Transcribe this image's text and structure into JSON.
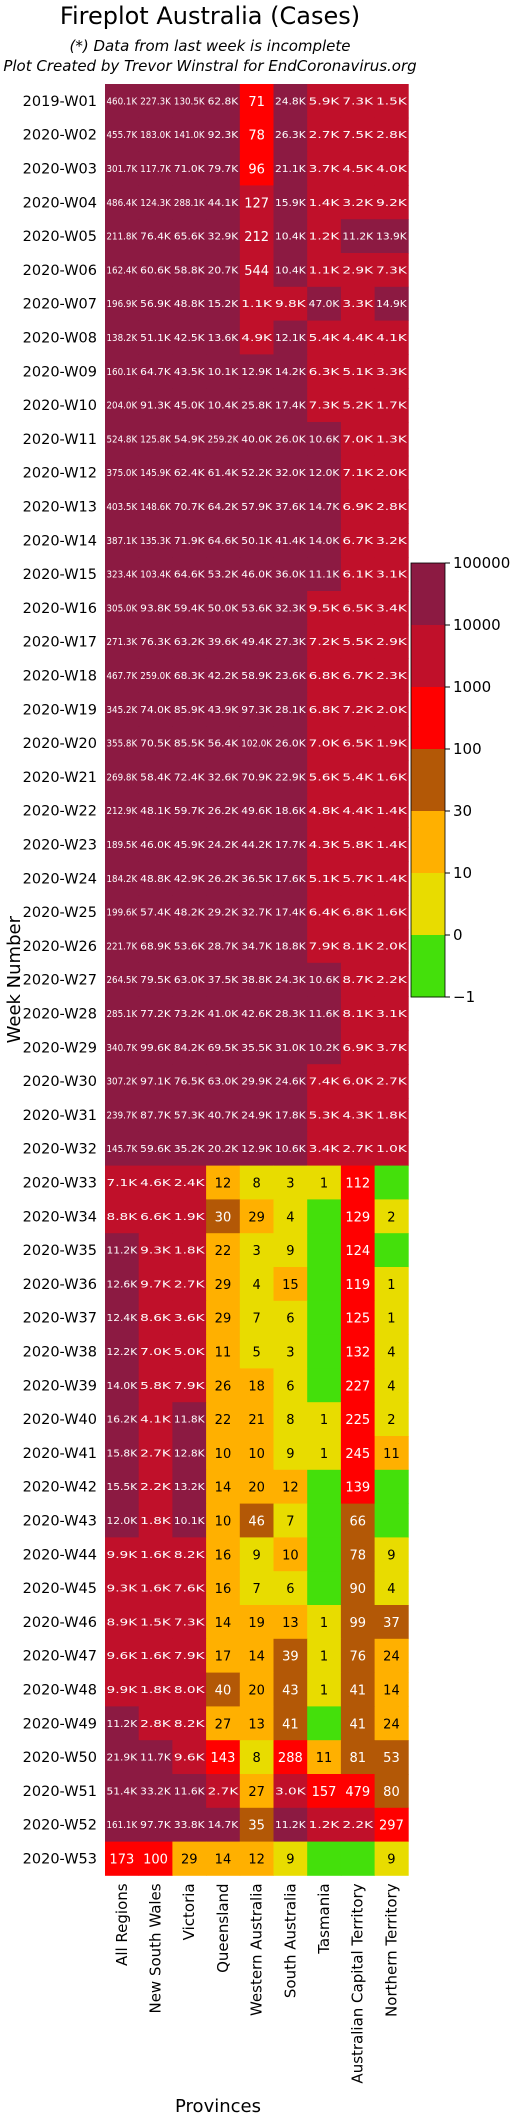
{
  "chart_data": {
    "type": "heatmap",
    "title": "Fireplot Australia (Cases)",
    "subtitle_lines": [
      "(*) Data from last week is incomplete",
      "Plot Created by Trevor Winstral for EndCoronavirus.org"
    ],
    "xlabel": "Provinces",
    "ylabel": "Week Number",
    "columns": [
      "All Regions",
      "New South Wales",
      "Victoria",
      "Queensland",
      "Western Australia",
      "South Australia",
      "Tasmania",
      "Australian Capital Territory",
      "Northern Territory"
    ],
    "rows": [
      "2019-W01",
      "2020-W02",
      "2020-W03",
      "2020-W04",
      "2020-W05",
      "2020-W06",
      "2020-W07",
      "2020-W08",
      "2020-W09",
      "2020-W10",
      "2020-W11",
      "2020-W12",
      "2020-W13",
      "2020-W14",
      "2020-W15",
      "2020-W16",
      "2020-W17",
      "2020-W18",
      "2020-W19",
      "2020-W20",
      "2020-W21",
      "2020-W22",
      "2020-W23",
      "2020-W24",
      "2020-W25",
      "2020-W26",
      "2020-W27",
      "2020-W28",
      "2020-W29",
      "2020-W30",
      "2020-W31",
      "2020-W32",
      "2020-W33",
      "2020-W34",
      "2020-W35",
      "2020-W36",
      "2020-W37",
      "2020-W38",
      "2020-W39",
      "2020-W40",
      "2020-W41",
      "2020-W42",
      "2020-W43",
      "2020-W44",
      "2020-W45",
      "2020-W46",
      "2020-W47",
      "2020-W48",
      "2020-W49",
      "2020-W50",
      "2020-W51",
      "2020-W52",
      "2020-W53"
    ],
    "cells": [
      [
        "460.1K",
        "227.3K",
        "130.5K",
        "62.8K",
        "71",
        "24.8K",
        "5.9K",
        "7.3K",
        "1.5K"
      ],
      [
        "455.7K",
        "183.0K",
        "141.0K",
        "92.3K",
        "78",
        "26.3K",
        "2.7K",
        "7.5K",
        "2.8K"
      ],
      [
        "301.7K",
        "117.7K",
        "71.0K",
        "79.7K",
        "96",
        "21.1K",
        "3.7K",
        "4.5K",
        "4.0K"
      ],
      [
        "486.4K",
        "124.3K",
        "288.1K",
        "44.1K",
        "127",
        "15.9K",
        "1.4K",
        "3.2K",
        "9.2K"
      ],
      [
        "211.8K",
        "76.4K",
        "65.6K",
        "32.9K",
        "212",
        "10.4K",
        "1.2K",
        "11.2K",
        "13.9K"
      ],
      [
        "162.4K",
        "60.6K",
        "58.8K",
        "20.7K",
        "544",
        "10.4K",
        "1.1K",
        "2.9K",
        "7.3K"
      ],
      [
        "196.9K",
        "56.9K",
        "48.8K",
        "15.2K",
        "1.1K",
        "9.8K",
        "47.0K",
        "3.3K",
        "14.9K"
      ],
      [
        "138.2K",
        "51.1K",
        "42.5K",
        "13.6K",
        "4.9K",
        "12.1K",
        "5.4K",
        "4.4K",
        "4.1K"
      ],
      [
        "160.1K",
        "64.7K",
        "43.5K",
        "10.1K",
        "12.9K",
        "14.2K",
        "6.3K",
        "5.1K",
        "3.3K"
      ],
      [
        "204.0K",
        "91.3K",
        "45.0K",
        "10.4K",
        "25.8K",
        "17.4K",
        "7.3K",
        "5.2K",
        "1.7K"
      ],
      [
        "524.8K",
        "125.8K",
        "54.9K",
        "259.2K",
        "40.0K",
        "26.0K",
        "10.6K",
        "7.0K",
        "1.3K"
      ],
      [
        "375.0K",
        "145.9K",
        "62.4K",
        "61.4K",
        "52.2K",
        "32.0K",
        "12.0K",
        "7.1K",
        "2.0K"
      ],
      [
        "403.5K",
        "148.6K",
        "70.7K",
        "64.2K",
        "57.9K",
        "37.6K",
        "14.7K",
        "6.9K",
        "2.8K"
      ],
      [
        "387.1K",
        "135.3K",
        "71.9K",
        "64.6K",
        "50.1K",
        "41.4K",
        "14.0K",
        "6.7K",
        "3.2K"
      ],
      [
        "323.4K",
        "103.4K",
        "64.6K",
        "53.2K",
        "46.0K",
        "36.0K",
        "11.1K",
        "6.1K",
        "3.1K"
      ],
      [
        "305.0K",
        "93.8K",
        "59.4K",
        "50.0K",
        "53.6K",
        "32.3K",
        "9.5K",
        "6.5K",
        "3.4K"
      ],
      [
        "271.3K",
        "76.3K",
        "63.2K",
        "39.6K",
        "49.4K",
        "27.3K",
        "7.2K",
        "5.5K",
        "2.9K"
      ],
      [
        "467.7K",
        "259.0K",
        "68.3K",
        "42.2K",
        "58.9K",
        "23.6K",
        "6.8K",
        "6.7K",
        "2.3K"
      ],
      [
        "345.2K",
        "74.0K",
        "85.9K",
        "43.9K",
        "97.3K",
        "28.1K",
        "6.8K",
        "7.2K",
        "2.0K"
      ],
      [
        "355.8K",
        "70.5K",
        "85.5K",
        "56.4K",
        "102.0K",
        "26.0K",
        "7.0K",
        "6.5K",
        "1.9K"
      ],
      [
        "269.8K",
        "58.4K",
        "72.4K",
        "32.6K",
        "70.9K",
        "22.9K",
        "5.6K",
        "5.4K",
        "1.6K"
      ],
      [
        "212.9K",
        "48.1K",
        "59.7K",
        "26.2K",
        "49.6K",
        "18.6K",
        "4.8K",
        "4.4K",
        "1.4K"
      ],
      [
        "189.5K",
        "46.0K",
        "45.9K",
        "24.2K",
        "44.2K",
        "17.7K",
        "4.3K",
        "5.8K",
        "1.4K"
      ],
      [
        "184.2K",
        "48.8K",
        "42.9K",
        "26.2K",
        "36.5K",
        "17.6K",
        "5.1K",
        "5.7K",
        "1.4K"
      ],
      [
        "199.6K",
        "57.4K",
        "48.2K",
        "29.2K",
        "32.7K",
        "17.4K",
        "6.4K",
        "6.8K",
        "1.6K"
      ],
      [
        "221.7K",
        "68.9K",
        "53.6K",
        "28.7K",
        "34.7K",
        "18.8K",
        "7.9K",
        "8.1K",
        "2.0K"
      ],
      [
        "264.5K",
        "79.5K",
        "63.0K",
        "37.5K",
        "38.8K",
        "24.3K",
        "10.6K",
        "8.7K",
        "2.2K"
      ],
      [
        "285.1K",
        "77.2K",
        "73.2K",
        "41.0K",
        "42.6K",
        "28.3K",
        "11.6K",
        "8.1K",
        "3.1K"
      ],
      [
        "340.7K",
        "99.6K",
        "84.2K",
        "69.5K",
        "35.5K",
        "31.0K",
        "10.2K",
        "6.9K",
        "3.7K"
      ],
      [
        "307.2K",
        "97.1K",
        "76.5K",
        "63.0K",
        "29.9K",
        "24.6K",
        "7.4K",
        "6.0K",
        "2.7K"
      ],
      [
        "239.7K",
        "87.7K",
        "57.3K",
        "40.7K",
        "24.9K",
        "17.8K",
        "5.3K",
        "4.3K",
        "1.8K"
      ],
      [
        "145.7K",
        "59.6K",
        "35.2K",
        "20.2K",
        "12.9K",
        "10.6K",
        "3.4K",
        "2.7K",
        "1.0K"
      ],
      [
        "7.1K",
        "4.6K",
        "2.4K",
        "12",
        "8",
        "3",
        "1",
        "112",
        ""
      ],
      [
        "8.8K",
        "6.6K",
        "1.9K",
        "30",
        "29",
        "4",
        "",
        "129",
        "2"
      ],
      [
        "11.2K",
        "9.3K",
        "1.8K",
        "22",
        "3",
        "9",
        "",
        "124",
        ""
      ],
      [
        "12.6K",
        "9.7K",
        "2.7K",
        "29",
        "4",
        "15",
        "",
        "119",
        "1"
      ],
      [
        "12.4K",
        "8.6K",
        "3.6K",
        "29",
        "7",
        "6",
        "",
        "125",
        "1"
      ],
      [
        "12.2K",
        "7.0K",
        "5.0K",
        "11",
        "5",
        "3",
        "",
        "132",
        "4"
      ],
      [
        "14.0K",
        "5.8K",
        "7.9K",
        "26",
        "18",
        "6",
        "",
        "227",
        "4"
      ],
      [
        "16.2K",
        "4.1K",
        "11.8K",
        "22",
        "21",
        "8",
        "1",
        "225",
        "2"
      ],
      [
        "15.8K",
        "2.7K",
        "12.8K",
        "10",
        "10",
        "9",
        "1",
        "245",
        "11"
      ],
      [
        "15.5K",
        "2.2K",
        "13.2K",
        "14",
        "20",
        "12",
        "",
        "139",
        ""
      ],
      [
        "12.0K",
        "1.8K",
        "10.1K",
        "10",
        "46",
        "7",
        "",
        "66",
        ""
      ],
      [
        "9.9K",
        "1.6K",
        "8.2K",
        "16",
        "9",
        "10",
        "",
        "78",
        "9"
      ],
      [
        "9.3K",
        "1.6K",
        "7.6K",
        "16",
        "7",
        "6",
        "",
        "90",
        "4"
      ],
      [
        "8.9K",
        "1.5K",
        "7.3K",
        "14",
        "19",
        "13",
        "1",
        "99",
        "37"
      ],
      [
        "9.6K",
        "1.6K",
        "7.9K",
        "17",
        "14",
        "39",
        "1",
        "76",
        "24"
      ],
      [
        "9.9K",
        "1.8K",
        "8.0K",
        "40",
        "20",
        "43",
        "1",
        "41",
        "14"
      ],
      [
        "11.2K",
        "2.8K",
        "8.2K",
        "27",
        "13",
        "41",
        "",
        "41",
        "24"
      ],
      [
        "21.9K",
        "11.7K",
        "9.6K",
        "143",
        "8",
        "288",
        "11",
        "81",
        "53"
      ],
      [
        "51.4K",
        "33.2K",
        "11.6K",
        "2.7K",
        "27",
        "3.0K",
        "157",
        "479",
        "80"
      ],
      [
        "161.1K",
        "97.7K",
        "33.8K",
        "14.7K",
        "35",
        "11.2K",
        "1.2K",
        "2.2K",
        "297"
      ],
      [
        "173",
        "100",
        "29",
        "14",
        "12",
        "9",
        "",
        "",
        "9"
      ]
    ],
    "color_classes": [
      [
        0,
        0,
        0,
        0,
        2,
        0,
        1,
        1,
        1
      ],
      [
        0,
        0,
        0,
        0,
        2,
        0,
        1,
        1,
        1
      ],
      [
        0,
        0,
        0,
        0,
        2,
        0,
        1,
        1,
        1
      ],
      [
        0,
        0,
        0,
        0,
        1,
        0,
        1,
        1,
        1
      ],
      [
        0,
        0,
        0,
        0,
        1,
        0,
        1,
        0,
        0
      ],
      [
        0,
        0,
        0,
        0,
        1,
        0,
        1,
        1,
        1
      ],
      [
        0,
        0,
        0,
        0,
        1,
        1,
        0,
        1,
        0
      ],
      [
        0,
        0,
        0,
        0,
        1,
        0,
        1,
        1,
        1
      ],
      [
        0,
        0,
        0,
        0,
        0,
        0,
        1,
        1,
        1
      ],
      [
        0,
        0,
        0,
        0,
        0,
        0,
        1,
        1,
        1
      ],
      [
        0,
        0,
        0,
        0,
        0,
        0,
        0,
        1,
        1
      ],
      [
        0,
        0,
        0,
        0,
        0,
        0,
        0,
        1,
        1
      ],
      [
        0,
        0,
        0,
        0,
        0,
        0,
        0,
        1,
        1
      ],
      [
        0,
        0,
        0,
        0,
        0,
        0,
        0,
        1,
        1
      ],
      [
        0,
        0,
        0,
        0,
        0,
        0,
        0,
        1,
        1
      ],
      [
        0,
        0,
        0,
        0,
        0,
        0,
        1,
        1,
        1
      ],
      [
        0,
        0,
        0,
        0,
        0,
        0,
        1,
        1,
        1
      ],
      [
        0,
        0,
        0,
        0,
        0,
        0,
        1,
        1,
        1
      ],
      [
        0,
        0,
        0,
        0,
        0,
        0,
        1,
        1,
        1
      ],
      [
        0,
        0,
        0,
        0,
        0,
        0,
        1,
        1,
        1
      ],
      [
        0,
        0,
        0,
        0,
        0,
        0,
        1,
        1,
        1
      ],
      [
        0,
        0,
        0,
        0,
        0,
        0,
        1,
        1,
        1
      ],
      [
        0,
        0,
        0,
        0,
        0,
        0,
        1,
        1,
        1
      ],
      [
        0,
        0,
        0,
        0,
        0,
        0,
        1,
        1,
        1
      ],
      [
        0,
        0,
        0,
        0,
        0,
        0,
        1,
        1,
        1
      ],
      [
        0,
        0,
        0,
        0,
        0,
        0,
        1,
        1,
        1
      ],
      [
        0,
        0,
        0,
        0,
        0,
        0,
        0,
        1,
        1
      ],
      [
        0,
        0,
        0,
        0,
        0,
        0,
        0,
        1,
        1
      ],
      [
        0,
        0,
        0,
        0,
        0,
        0,
        0,
        1,
        1
      ],
      [
        0,
        0,
        0,
        0,
        0,
        0,
        1,
        1,
        1
      ],
      [
        0,
        0,
        0,
        0,
        0,
        0,
        1,
        1,
        1
      ],
      [
        0,
        0,
        0,
        0,
        0,
        0,
        1,
        1,
        1
      ],
      [
        1,
        1,
        1,
        4,
        5,
        5,
        5,
        2,
        6
      ],
      [
        1,
        1,
        1,
        3,
        4,
        5,
        6,
        2,
        5
      ],
      [
        0,
        1,
        1,
        4,
        5,
        5,
        6,
        2,
        6
      ],
      [
        0,
        1,
        1,
        4,
        5,
        4,
        6,
        2,
        5
      ],
      [
        0,
        1,
        1,
        4,
        5,
        5,
        6,
        2,
        5
      ],
      [
        0,
        1,
        1,
        4,
        5,
        5,
        6,
        2,
        5
      ],
      [
        0,
        1,
        1,
        4,
        4,
        5,
        6,
        2,
        5
      ],
      [
        0,
        1,
        0,
        4,
        4,
        5,
        5,
        2,
        5
      ],
      [
        0,
        1,
        0,
        4,
        4,
        5,
        5,
        2,
        4
      ],
      [
        0,
        1,
        0,
        4,
        4,
        4,
        6,
        2,
        6
      ],
      [
        0,
        1,
        0,
        4,
        3,
        5,
        6,
        3,
        6
      ],
      [
        1,
        1,
        1,
        4,
        5,
        4,
        6,
        3,
        5
      ],
      [
        1,
        1,
        1,
        4,
        5,
        5,
        6,
        3,
        5
      ],
      [
        1,
        1,
        1,
        4,
        4,
        4,
        5,
        3,
        3
      ],
      [
        1,
        1,
        1,
        4,
        4,
        3,
        5,
        3,
        4
      ],
      [
        1,
        1,
        1,
        3,
        4,
        3,
        5,
        3,
        4
      ],
      [
        0,
        1,
        1,
        4,
        4,
        3,
        6,
        3,
        4
      ],
      [
        0,
        0,
        1,
        2,
        5,
        2,
        4,
        3,
        3
      ],
      [
        0,
        0,
        0,
        1,
        4,
        1,
        2,
        2,
        3
      ],
      [
        0,
        0,
        0,
        0,
        3,
        0,
        1,
        1,
        2
      ],
      [
        2,
        2,
        4,
        4,
        4,
        5,
        6,
        6,
        5
      ]
    ],
    "colorbar": {
      "tick_labels": [
        "100000",
        "10000",
        "1000",
        "100",
        "30",
        "10",
        "0",
        "−1"
      ],
      "colors": [
        "#8c1a42",
        "#c0102a",
        "#ff0000",
        "#b35806",
        "#ffb000",
        "#e8dc00",
        "#44e00b"
      ]
    }
  }
}
